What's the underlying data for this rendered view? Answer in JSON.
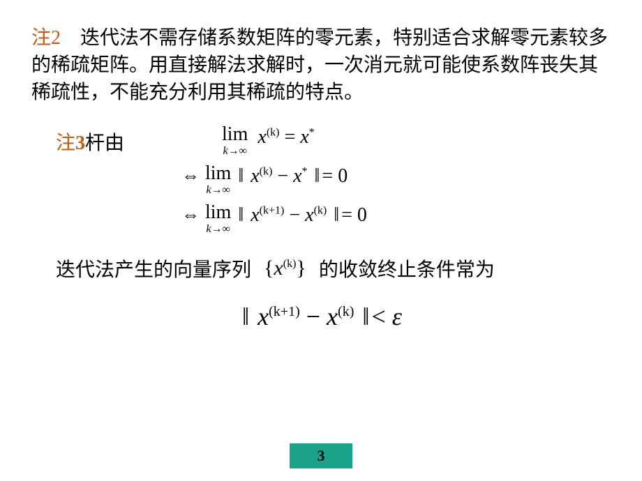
{
  "note2": {
    "label": "注2",
    "text": "　迭代法不需存储系数矩阵的零元素，特别适合求解零元素较多的稀疏矩阵。用直接解法求解时，一次消元就可能使系数阵丧失其稀疏性，不能充分利用其稀疏的特点。",
    "label_color": "#c55a11"
  },
  "note3": {
    "label_prefix": "注",
    "label_num": "3",
    "label_suffix": "杆由",
    "label_color": "#c55a11"
  },
  "equations": {
    "lim_text": "lim",
    "lim_sub": "k→∞",
    "x": "x",
    "sup_k": "(k)",
    "sup_k1": "(k+1)",
    "star": "*",
    "eq": " = ",
    "equiv": "⇔",
    "dblbar": "‖",
    "minus": " − ",
    "zero": " 0",
    "lt": "< ",
    "eps": "ε"
  },
  "sentence": {
    "part1": "迭代法产生的向量序列",
    "brace_l": "{",
    "brace_r": "}",
    "part2": "的收敛终止条件常为"
  },
  "page": {
    "number": "3",
    "bg_color": "#1aa38a"
  },
  "styling": {
    "body_font": "SimSun",
    "math_font": "Times New Roman",
    "text_color": "#000000",
    "background_color": "#ffffff",
    "body_fontsize": 28,
    "final_eq_fontsize": 36
  }
}
